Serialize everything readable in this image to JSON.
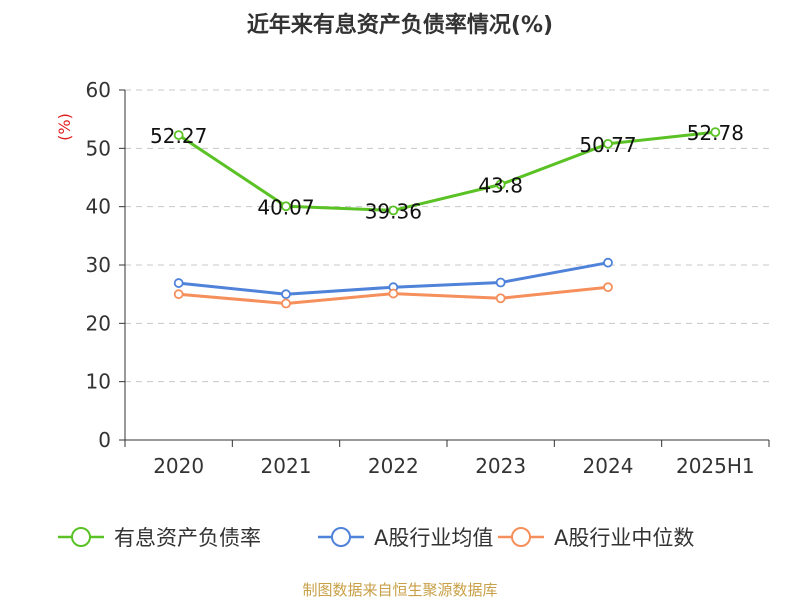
{
  "chart_data": {
    "type": "line",
    "title": "近年来有息资产负债率情况(%)",
    "unit_label": "(%)",
    "categories": [
      "2020",
      "2021",
      "2022",
      "2023",
      "2024",
      "2025H1"
    ],
    "ylim": [
      0,
      60
    ],
    "yticks": [
      "0",
      "10",
      "20",
      "30",
      "40",
      "50",
      "60"
    ],
    "grid": true,
    "legend_position": "bottom",
    "series": [
      {
        "name": "有息资产负债率",
        "color": "#5ac224",
        "values": [
          52.27,
          40.07,
          39.36,
          43.8,
          50.77,
          52.78
        ],
        "labels": [
          "52.27",
          "40.07",
          "39.36",
          "43.8",
          "50.77",
          "52.78"
        ]
      },
      {
        "name": "A股行业均值",
        "color": "#4f82d9",
        "values": [
          26.9,
          25.0,
          26.2,
          27.0,
          30.4,
          null
        ]
      },
      {
        "name": "A股行业中位数",
        "color": "#f58f5c",
        "values": [
          25.0,
          23.4,
          25.1,
          24.3,
          26.2,
          null
        ]
      }
    ],
    "source": "制图数据来自恒生聚源数据库"
  }
}
